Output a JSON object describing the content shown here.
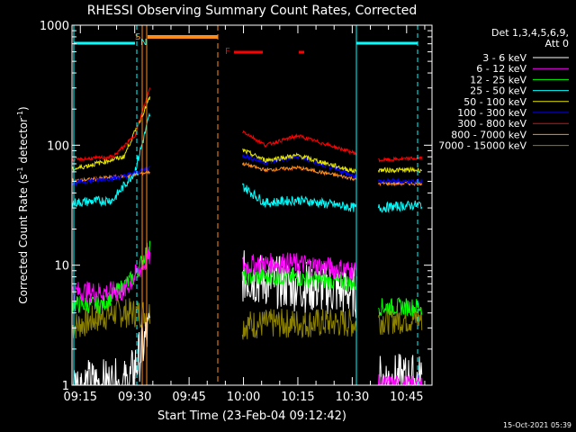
{
  "chart_data": {
    "type": "line",
    "title": "RHESSI Observing Summary Count Rates, Corrected",
    "xlabel": "Start Time (23-Feb-04 09:12:42)",
    "ylabel_main": "Corrected Count Rate (s",
    "ylabel_sup1": "-1",
    "ylabel_mid": " detector",
    "ylabel_sup2": "-1",
    "ylabel_end": ")",
    "yscale": "log",
    "ylim": [
      1,
      1000
    ],
    "xlim_minutes": [
      "09:12:42",
      "10:52:00"
    ],
    "yticks": [
      {
        "value": 1,
        "label": "1"
      },
      {
        "value": 10,
        "label": "10"
      },
      {
        "value": 100,
        "label": "100"
      },
      {
        "value": 1000,
        "label": "1000"
      }
    ],
    "xticks": [
      "09:15",
      "09:30",
      "09:45",
      "10:00",
      "10:15",
      "10:30",
      "10:45"
    ],
    "legend_title_1": "Det 1,3,4,5,6,9,",
    "legend_title_2": "Att 0",
    "legend_position": "top-right",
    "series": [
      {
        "name": "3 - 6 keV",
        "color": "#ffffff"
      },
      {
        "name": "6 - 12 keV",
        "color": "#ff00ff"
      },
      {
        "name": "12 - 25 keV",
        "color": "#00ff00"
      },
      {
        "name": "25 - 50 keV",
        "color": "#00ffff"
      },
      {
        "name": "50 - 100 keV",
        "color": "#e6e600"
      },
      {
        "name": "100 - 300 keV",
        "color": "#0000ff"
      },
      {
        "name": "300 - 800 keV",
        "color": "#ff0000"
      },
      {
        "name": "800 - 7000 keV",
        "color": "#ff8c1a"
      },
      {
        "name": "7000 - 15000 keV",
        "color": "#8c8200"
      }
    ],
    "flag_labels": {
      "saa": "S",
      "night": "N",
      "flare": "F"
    },
    "annotation_timestamp": "15-Oct-2021 05:39"
  }
}
